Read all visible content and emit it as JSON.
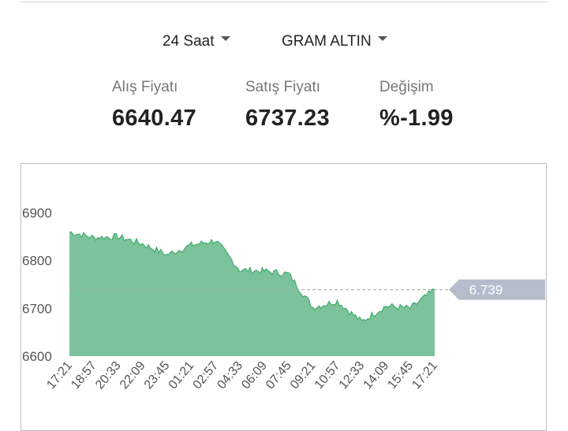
{
  "controls": {
    "period_label": "24 Saat",
    "asset_label": "GRAM ALTIN"
  },
  "stats": {
    "buy_label": "Alış Fiyatı",
    "buy_value": "6640.47",
    "sell_label": "Satış Fiyatı",
    "sell_value": "6737.23",
    "change_label": "Değişim",
    "change_value": "%-1.99"
  },
  "chart_data": {
    "type": "area",
    "x": [
      "17:21",
      "18:57",
      "20:33",
      "22:09",
      "23:45",
      "01:21",
      "02:57",
      "04:33",
      "06:09",
      "07:45",
      "09:21",
      "10:57",
      "12:33",
      "14:09",
      "15:45",
      "17:21"
    ],
    "values": [
      6860,
      6848,
      6850,
      6835,
      6812,
      6832,
      6842,
      6780,
      6778,
      6772,
      6702,
      6715,
      6672,
      6705,
      6700,
      6739
    ],
    "ylim": [
      6600,
      6900
    ],
    "yticks": [
      6600,
      6700,
      6800,
      6900
    ],
    "current_value": 6739,
    "current_label": "6.739",
    "fill_color": "#7cc29a",
    "line_color": "#3fae6b",
    "grid": false
  }
}
